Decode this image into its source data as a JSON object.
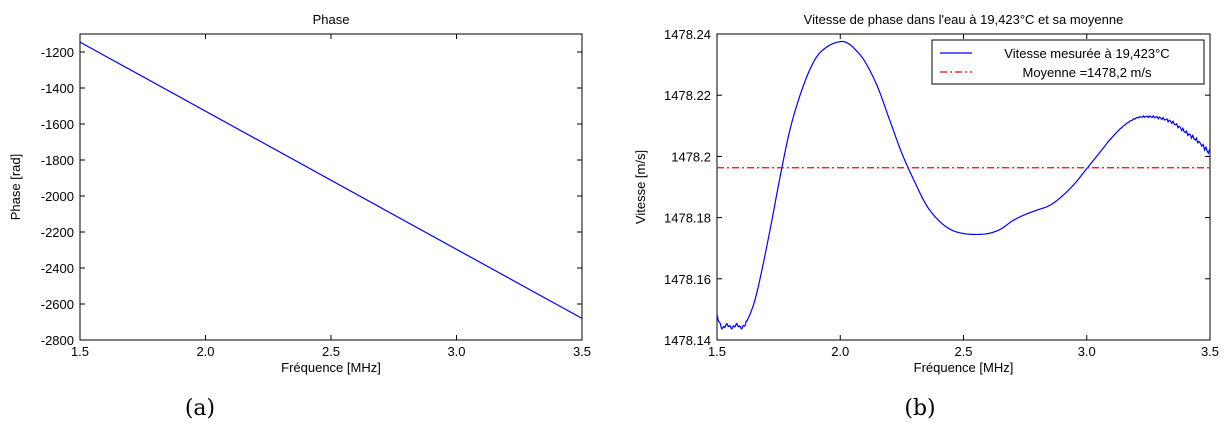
{
  "chart_data": [
    {
      "type": "line",
      "panel_caption": "(a)",
      "title": "Phase",
      "xlabel": "Fréquence [MHz]",
      "ylabel": "Phase [rad]",
      "xlim": [
        1.5,
        3.5
      ],
      "ylim": [
        -2800,
        -1100
      ],
      "xticks": [
        "1.5",
        "2.0",
        "2.5",
        "3.0",
        "3.5"
      ],
      "yticks": [
        "-1200",
        "-1400",
        "-1600",
        "-1800",
        "-2000",
        "-2200",
        "-2400",
        "-2600",
        "-2800"
      ],
      "grid": false,
      "series": [
        {
          "color": "#0000ff",
          "style": "solid",
          "x": [
            1.5,
            3.5
          ],
          "y": [
            -1145,
            -2680
          ]
        }
      ]
    },
    {
      "type": "line",
      "panel_caption": "(b)",
      "title": "Vitesse de phase dans l'eau à 19,423°C et sa moyenne",
      "xlabel": "Fréquence [MHz]",
      "ylabel": "Vitesse [m/s]",
      "xlim": [
        1.5,
        3.5
      ],
      "ylim": [
        1478.14,
        1478.24
      ],
      "xticks": [
        "1.5",
        "2.0",
        "2.5",
        "3.0",
        "3.5"
      ],
      "yticks": [
        "1478.24",
        "1478.22",
        "1478.2",
        "1478.18",
        "1478.16",
        "1478.14"
      ],
      "grid": false,
      "legend_position": "top-right",
      "series": [
        {
          "name": "Vitesse mesurée à 19,423°C",
          "color": "#0000ff",
          "style": "solid",
          "x": [
            1.5,
            1.52,
            1.54,
            1.56,
            1.58,
            1.6,
            1.62,
            1.65,
            1.68,
            1.72,
            1.76,
            1.8,
            1.85,
            1.9,
            1.95,
            2.0,
            2.03,
            2.06,
            2.1,
            2.15,
            2.2,
            2.25,
            2.3,
            2.35,
            2.4,
            2.45,
            2.5,
            2.55,
            2.6,
            2.65,
            2.7,
            2.75,
            2.8,
            2.85,
            2.9,
            2.95,
            3.0,
            3.05,
            3.1,
            3.15,
            3.2,
            3.25,
            3.3,
            3.35,
            3.4,
            3.45,
            3.5
          ],
          "y": [
            1478.148,
            1478.144,
            1478.145,
            1478.144,
            1478.145,
            1478.144,
            1478.146,
            1478.152,
            1478.162,
            1478.178,
            1478.195,
            1478.21,
            1478.223,
            1478.232,
            1478.236,
            1478.2375,
            1478.237,
            1478.235,
            1478.231,
            1478.223,
            1478.212,
            1478.201,
            1478.192,
            1478.184,
            1478.179,
            1478.176,
            1478.1748,
            1478.1745,
            1478.1748,
            1478.1762,
            1478.179,
            1478.181,
            1478.1825,
            1478.184,
            1478.187,
            1478.191,
            1478.196,
            1478.201,
            1478.206,
            1478.21,
            1478.2125,
            1478.213,
            1478.2125,
            1478.211,
            1478.208,
            1478.205,
            1478.201
          ]
        },
        {
          "name": "Moyenne =1478,2 m/s",
          "color": "#ff0000",
          "style": "dashdot",
          "x": [
            1.5,
            3.5
          ],
          "y": [
            1478.1963,
            1478.1963
          ]
        }
      ]
    }
  ]
}
